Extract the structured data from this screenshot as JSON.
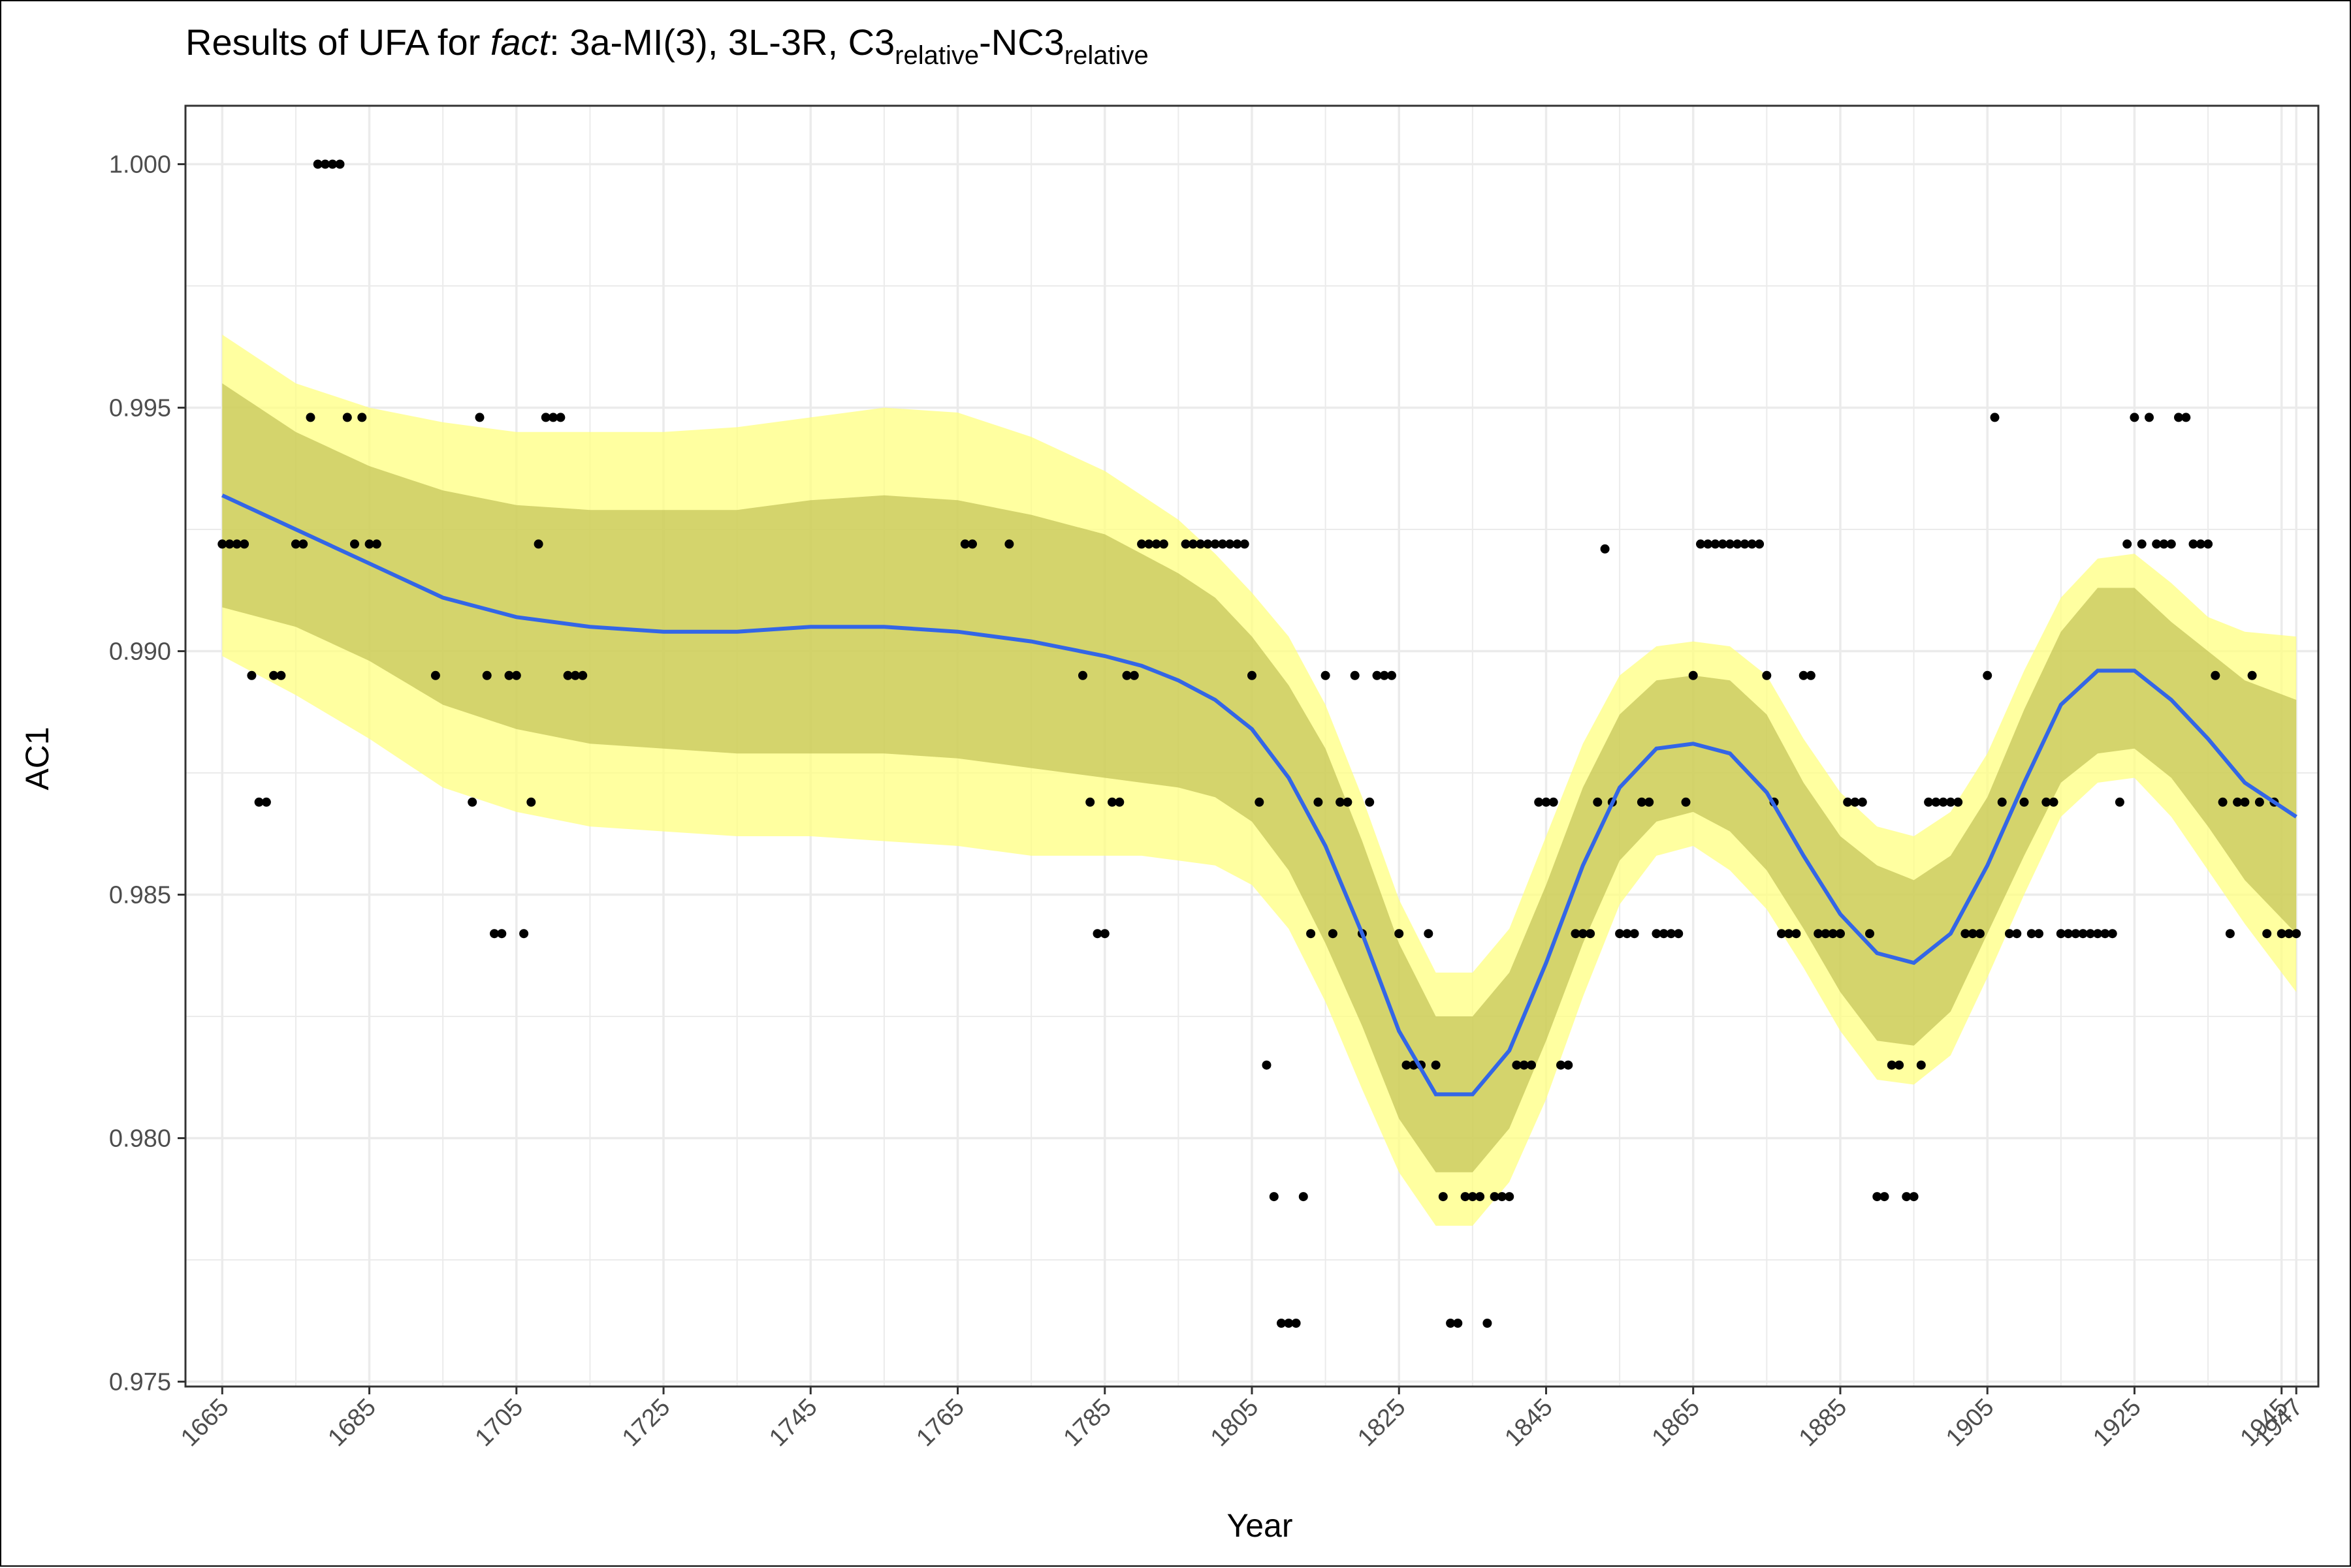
{
  "chart_data": {
    "type": "scatter",
    "title": {
      "prefix": "Results of UFA for ",
      "emphasis": "fact",
      "after_emphasis": ": 3a-MI(3), 3L-3R, C3",
      "subscript_1": "relative",
      "mid": "-NC3",
      "subscript_2": "relative"
    },
    "xlabel": "Year",
    "ylabel": "AC1",
    "xlim": [
      1660,
      1950
    ],
    "ylim": [
      0.9749,
      1.0012
    ],
    "x_ticks": [
      1665,
      1685,
      1705,
      1725,
      1745,
      1765,
      1785,
      1805,
      1825,
      1845,
      1865,
      1885,
      1905,
      1925,
      1945,
      1947
    ],
    "x_tick_labels": [
      "1665",
      "1685",
      "1705",
      "1725",
      "1745",
      "1765",
      "1785",
      "1805",
      "1825",
      "1845",
      "1865",
      "1885",
      "1905",
      "1925",
      "1945",
      "1947"
    ],
    "y_ticks": [
      0.975,
      0.98,
      0.985,
      0.99,
      0.995,
      1.0
    ],
    "y_tick_labels": [
      "0.975",
      "0.980",
      "0.985",
      "0.990",
      "0.995",
      "1.000"
    ],
    "grid": true,
    "colors": {
      "points": "#000000",
      "smooth_line": "#3366e6",
      "outer_band": "#ffff80",
      "inner_band": "#b8b84a",
      "grid": "#ebebeb",
      "panel_border": "#333333"
    },
    "smooth_fit": {
      "x": [
        1665,
        1675,
        1685,
        1695,
        1705,
        1715,
        1725,
        1735,
        1745,
        1755,
        1765,
        1775,
        1785,
        1790,
        1795,
        1800,
        1805,
        1810,
        1815,
        1820,
        1825,
        1830,
        1835,
        1840,
        1845,
        1850,
        1855,
        1860,
        1865,
        1870,
        1875,
        1880,
        1885,
        1890,
        1895,
        1900,
        1905,
        1910,
        1915,
        1920,
        1925,
        1930,
        1935,
        1940,
        1947
      ],
      "y": [
        0.9932,
        0.9925,
        0.9918,
        0.9911,
        0.9907,
        0.9905,
        0.9904,
        0.9904,
        0.9905,
        0.9905,
        0.9904,
        0.9902,
        0.9899,
        0.9897,
        0.9894,
        0.989,
        0.9884,
        0.9874,
        0.986,
        0.9842,
        0.9822,
        0.9809,
        0.9809,
        0.9818,
        0.9836,
        0.9856,
        0.9872,
        0.988,
        0.9881,
        0.9879,
        0.9871,
        0.9858,
        0.9846,
        0.9838,
        0.9836,
        0.9842,
        0.9856,
        0.9873,
        0.9889,
        0.9896,
        0.9896,
        0.989,
        0.9882,
        0.9873,
        0.9866
      ],
      "inner_lower": [
        0.9909,
        0.9905,
        0.9898,
        0.9889,
        0.9884,
        0.9881,
        0.988,
        0.9879,
        0.9879,
        0.9879,
        0.9878,
        0.9876,
        0.9874,
        0.9873,
        0.9872,
        0.987,
        0.9865,
        0.9855,
        0.984,
        0.9823,
        0.9804,
        0.9793,
        0.9793,
        0.9802,
        0.982,
        0.984,
        0.9857,
        0.9865,
        0.9867,
        0.9863,
        0.9855,
        0.9843,
        0.983,
        0.982,
        0.9819,
        0.9826,
        0.9842,
        0.9858,
        0.9873,
        0.9879,
        0.988,
        0.9874,
        0.9864,
        0.9853,
        0.9842
      ],
      "inner_upper": [
        0.9955,
        0.9945,
        0.9938,
        0.9933,
        0.993,
        0.9929,
        0.9929,
        0.9929,
        0.9931,
        0.9932,
        0.9931,
        0.9928,
        0.9924,
        0.992,
        0.9916,
        0.9911,
        0.9903,
        0.9893,
        0.988,
        0.9861,
        0.984,
        0.9825,
        0.9825,
        0.9834,
        0.9852,
        0.9872,
        0.9887,
        0.9894,
        0.9895,
        0.9894,
        0.9887,
        0.9873,
        0.9862,
        0.9856,
        0.9853,
        0.9858,
        0.987,
        0.9888,
        0.9904,
        0.9913,
        0.9913,
        0.9906,
        0.99,
        0.9894,
        0.989
      ],
      "outer_lower": [
        0.9899,
        0.9891,
        0.9882,
        0.9872,
        0.9867,
        0.9864,
        0.9863,
        0.9862,
        0.9862,
        0.9861,
        0.986,
        0.9858,
        0.9858,
        0.9858,
        0.9857,
        0.9856,
        0.9852,
        0.9843,
        0.9828,
        0.981,
        0.9793,
        0.9782,
        0.9782,
        0.9791,
        0.9808,
        0.9829,
        0.9848,
        0.9858,
        0.986,
        0.9855,
        0.9847,
        0.9835,
        0.9822,
        0.9812,
        0.9811,
        0.9817,
        0.9833,
        0.985,
        0.9866,
        0.9873,
        0.9874,
        0.9866,
        0.9855,
        0.9844,
        0.983
      ],
      "outer_upper": [
        0.9965,
        0.9955,
        0.995,
        0.9947,
        0.9945,
        0.9945,
        0.9945,
        0.9946,
        0.9948,
        0.995,
        0.9949,
        0.9944,
        0.9937,
        0.9932,
        0.9927,
        0.992,
        0.9912,
        0.9903,
        0.9889,
        0.987,
        0.9849,
        0.9834,
        0.9834,
        0.9843,
        0.9862,
        0.9881,
        0.9895,
        0.9901,
        0.9902,
        0.9901,
        0.9895,
        0.9882,
        0.9871,
        0.9864,
        0.9862,
        0.9867,
        0.9879,
        0.9896,
        0.9911,
        0.9919,
        0.992,
        0.9914,
        0.9907,
        0.9904,
        0.9903
      ]
    },
    "points": [
      [
        1665,
        0.9922
      ],
      [
        1666,
        0.9922
      ],
      [
        1667,
        0.9922
      ],
      [
        1668,
        0.9922
      ],
      [
        1669,
        0.9895
      ],
      [
        1670,
        0.9869
      ],
      [
        1671,
        0.9869
      ],
      [
        1672,
        0.9895
      ],
      [
        1673,
        0.9895
      ],
      [
        1675,
        0.9922
      ],
      [
        1676,
        0.9922
      ],
      [
        1677,
        0.9948
      ],
      [
        1678,
        1.0
      ],
      [
        1679,
        1.0
      ],
      [
        1680,
        1.0
      ],
      [
        1681,
        1.0
      ],
      [
        1682,
        0.9948
      ],
      [
        1683,
        0.9922
      ],
      [
        1684,
        0.9948
      ],
      [
        1685,
        0.9922
      ],
      [
        1686,
        0.9922
      ],
      [
        1694,
        0.9895
      ],
      [
        1699,
        0.9869
      ],
      [
        1700,
        0.9948
      ],
      [
        1701,
        0.9895
      ],
      [
        1702,
        0.9842
      ],
      [
        1703,
        0.9842
      ],
      [
        1704,
        0.9895
      ],
      [
        1705,
        0.9895
      ],
      [
        1706,
        0.9842
      ],
      [
        1707,
        0.9869
      ],
      [
        1708,
        0.9922
      ],
      [
        1709,
        0.9948
      ],
      [
        1710,
        0.9948
      ],
      [
        1711,
        0.9948
      ],
      [
        1712,
        0.9895
      ],
      [
        1713,
        0.9895
      ],
      [
        1714,
        0.9895
      ],
      [
        1766,
        0.9922
      ],
      [
        1767,
        0.9922
      ],
      [
        1772,
        0.9922
      ],
      [
        1782,
        0.9895
      ],
      [
        1783,
        0.9869
      ],
      [
        1784,
        0.9842
      ],
      [
        1785,
        0.9842
      ],
      [
        1786,
        0.9869
      ],
      [
        1787,
        0.9869
      ],
      [
        1788,
        0.9895
      ],
      [
        1789,
        0.9895
      ],
      [
        1790,
        0.9922
      ],
      [
        1791,
        0.9922
      ],
      [
        1792,
        0.9922
      ],
      [
        1793,
        0.9922
      ],
      [
        1796,
        0.9922
      ],
      [
        1797,
        0.9922
      ],
      [
        1798,
        0.9922
      ],
      [
        1799,
        0.9922
      ],
      [
        1800,
        0.9922
      ],
      [
        1801,
        0.9922
      ],
      [
        1802,
        0.9922
      ],
      [
        1803,
        0.9922
      ],
      [
        1804,
        0.9922
      ],
      [
        1805,
        0.9895
      ],
      [
        1806,
        0.9869
      ],
      [
        1807,
        0.9815
      ],
      [
        1808,
        0.9788
      ],
      [
        1809,
        0.9762
      ],
      [
        1810,
        0.9762
      ],
      [
        1811,
        0.9762
      ],
      [
        1812,
        0.9788
      ],
      [
        1813,
        0.9842
      ],
      [
        1814,
        0.9869
      ],
      [
        1815,
        0.9895
      ],
      [
        1816,
        0.9842
      ],
      [
        1817,
        0.9869
      ],
      [
        1818,
        0.9869
      ],
      [
        1819,
        0.9895
      ],
      [
        1820,
        0.9842
      ],
      [
        1821,
        0.9869
      ],
      [
        1822,
        0.9895
      ],
      [
        1823,
        0.9895
      ],
      [
        1824,
        0.9895
      ],
      [
        1825,
        0.9842
      ],
      [
        1826,
        0.9815
      ],
      [
        1827,
        0.9815
      ],
      [
        1828,
        0.9815
      ],
      [
        1829,
        0.9842
      ],
      [
        1830,
        0.9815
      ],
      [
        1831,
        0.9788
      ],
      [
        1832,
        0.9762
      ],
      [
        1833,
        0.9762
      ],
      [
        1834,
        0.9788
      ],
      [
        1835,
        0.9788
      ],
      [
        1836,
        0.9788
      ],
      [
        1837,
        0.9762
      ],
      [
        1838,
        0.9788
      ],
      [
        1839,
        0.9788
      ],
      [
        1840,
        0.9788
      ],
      [
        1841,
        0.9815
      ],
      [
        1842,
        0.9815
      ],
      [
        1843,
        0.9815
      ],
      [
        1844,
        0.9869
      ],
      [
        1845,
        0.9869
      ],
      [
        1846,
        0.9869
      ],
      [
        1847,
        0.9815
      ],
      [
        1848,
        0.9815
      ],
      [
        1849,
        0.9842
      ],
      [
        1850,
        0.9842
      ],
      [
        1851,
        0.9842
      ],
      [
        1852,
        0.9869
      ],
      [
        1853,
        0.9921
      ],
      [
        1854,
        0.9869
      ],
      [
        1855,
        0.9842
      ],
      [
        1856,
        0.9842
      ],
      [
        1857,
        0.9842
      ],
      [
        1858,
        0.9869
      ],
      [
        1859,
        0.9869
      ],
      [
        1860,
        0.9842
      ],
      [
        1861,
        0.9842
      ],
      [
        1862,
        0.9842
      ],
      [
        1863,
        0.9842
      ],
      [
        1864,
        0.9869
      ],
      [
        1865,
        0.9895
      ],
      [
        1866,
        0.9922
      ],
      [
        1867,
        0.9922
      ],
      [
        1868,
        0.9922
      ],
      [
        1869,
        0.9922
      ],
      [
        1870,
        0.9922
      ],
      [
        1871,
        0.9922
      ],
      [
        1872,
        0.9922
      ],
      [
        1873,
        0.9922
      ],
      [
        1874,
        0.9922
      ],
      [
        1875,
        0.9895
      ],
      [
        1876,
        0.9869
      ],
      [
        1877,
        0.9842
      ],
      [
        1878,
        0.9842
      ],
      [
        1879,
        0.9842
      ],
      [
        1880,
        0.9895
      ],
      [
        1881,
        0.9895
      ],
      [
        1882,
        0.9842
      ],
      [
        1883,
        0.9842
      ],
      [
        1884,
        0.9842
      ],
      [
        1885,
        0.9842
      ],
      [
        1886,
        0.9869
      ],
      [
        1887,
        0.9869
      ],
      [
        1888,
        0.9869
      ],
      [
        1889,
        0.9842
      ],
      [
        1890,
        0.9788
      ],
      [
        1891,
        0.9788
      ],
      [
        1892,
        0.9815
      ],
      [
        1893,
        0.9815
      ],
      [
        1894,
        0.9788
      ],
      [
        1895,
        0.9788
      ],
      [
        1896,
        0.9815
      ],
      [
        1897,
        0.9869
      ],
      [
        1898,
        0.9869
      ],
      [
        1899,
        0.9869
      ],
      [
        1900,
        0.9869
      ],
      [
        1901,
        0.9869
      ],
      [
        1902,
        0.9842
      ],
      [
        1903,
        0.9842
      ],
      [
        1904,
        0.9842
      ],
      [
        1905,
        0.9895
      ],
      [
        1906,
        0.9948
      ],
      [
        1907,
        0.9869
      ],
      [
        1908,
        0.9842
      ],
      [
        1909,
        0.9842
      ],
      [
        1910,
        0.9869
      ],
      [
        1911,
        0.9842
      ],
      [
        1912,
        0.9842
      ],
      [
        1913,
        0.9869
      ],
      [
        1914,
        0.9869
      ],
      [
        1915,
        0.9842
      ],
      [
        1916,
        0.9842
      ],
      [
        1917,
        0.9842
      ],
      [
        1918,
        0.9842
      ],
      [
        1919,
        0.9842
      ],
      [
        1920,
        0.9842
      ],
      [
        1921,
        0.9842
      ],
      [
        1922,
        0.9842
      ],
      [
        1923,
        0.9869
      ],
      [
        1924,
        0.9922
      ],
      [
        1925,
        0.9948
      ],
      [
        1926,
        0.9922
      ],
      [
        1927,
        0.9948
      ],
      [
        1928,
        0.9922
      ],
      [
        1929,
        0.9922
      ],
      [
        1930,
        0.9922
      ],
      [
        1931,
        0.9948
      ],
      [
        1932,
        0.9948
      ],
      [
        1933,
        0.9922
      ],
      [
        1934,
        0.9922
      ],
      [
        1935,
        0.9922
      ],
      [
        1936,
        0.9895
      ],
      [
        1937,
        0.9869
      ],
      [
        1938,
        0.9842
      ],
      [
        1939,
        0.9869
      ],
      [
        1940,
        0.9869
      ],
      [
        1941,
        0.9895
      ],
      [
        1942,
        0.9869
      ],
      [
        1943,
        0.9842
      ],
      [
        1944,
        0.9869
      ],
      [
        1945,
        0.9842
      ],
      [
        1946,
        0.9842
      ],
      [
        1947,
        0.9842
      ]
    ]
  }
}
